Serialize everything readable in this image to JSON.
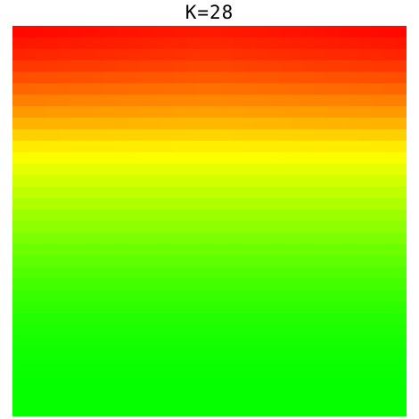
{
  "chart_data": {
    "type": "heatmap",
    "title": "K=28",
    "xlabel": "",
    "ylabel": "",
    "grid": false,
    "rows": 34,
    "cols": 34,
    "row_colors": [
      "#ff1a00",
      "#ff2600",
      "#ff3300",
      "#ff4400",
      "#ff5a00",
      "#ff7000",
      "#ff8800",
      "#ffa000",
      "#ffb800",
      "#ffd400",
      "#ffee00",
      "#fbff00",
      "#e6ff00",
      "#d2ff00",
      "#c0ff00",
      "#aeff00",
      "#9cff00",
      "#8cff00",
      "#7cff00",
      "#6cff00",
      "#5eff00",
      "#50ff00",
      "#44ff00",
      "#38ff00",
      "#2eff00",
      "#24ff00",
      "#1cff00",
      "#14ff00",
      "#0fff00",
      "#0aff00",
      "#08ff00",
      "#06ff00",
      "#05ff00",
      "#04ff00"
    ]
  }
}
